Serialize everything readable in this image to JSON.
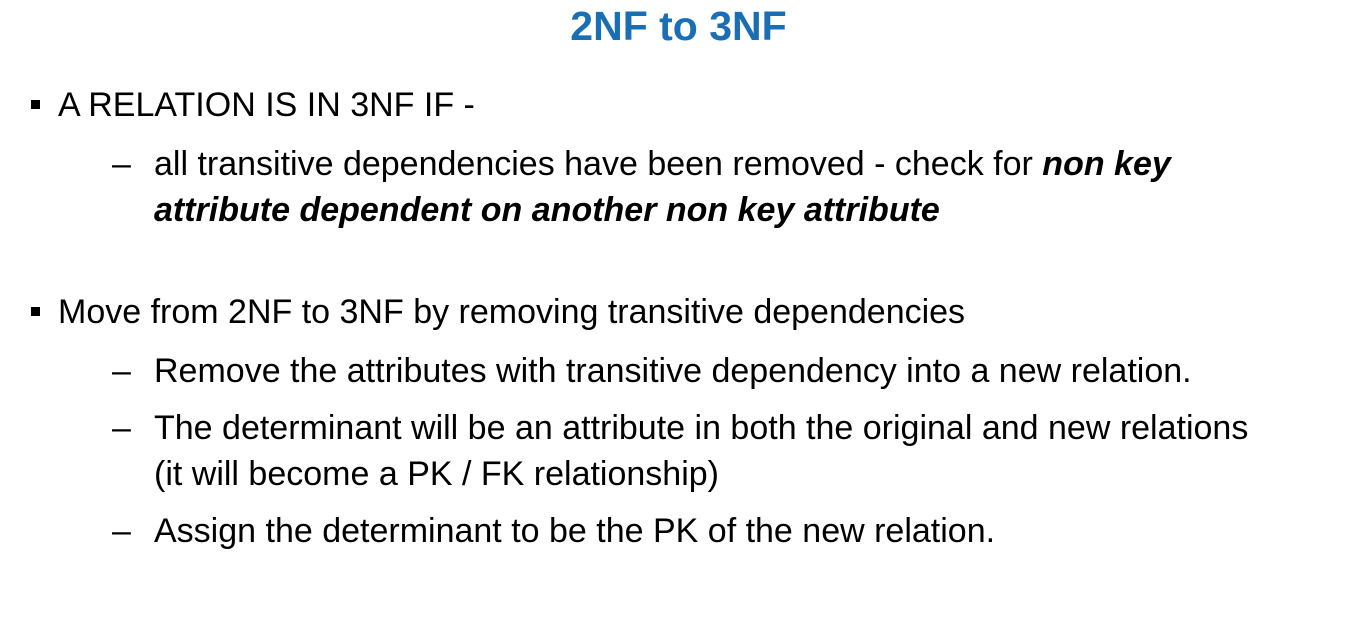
{
  "slide": {
    "title": "2NF to 3NF",
    "title_color": "#1a6fb4",
    "bullets": [
      {
        "text": "A RELATION IS IN 3NF IF -",
        "subitems": [
          {
            "text": "all transitive dependencies have been removed - check for ",
            "emphasis": "non key attribute dependent on another non key attribute"
          }
        ]
      },
      {
        "text": "Move from 2NF to 3NF by removing transitive dependencies",
        "subitems": [
          {
            "text": "Remove the attributes with transitive dependency into a new relation."
          },
          {
            "text": "The determinant will be an attribute in both the original and new relations (it will become a PK / FK relationship)"
          },
          {
            "text": "Assign the determinant to be the PK of the new relation."
          }
        ]
      }
    ],
    "dash_glyph": "–"
  }
}
